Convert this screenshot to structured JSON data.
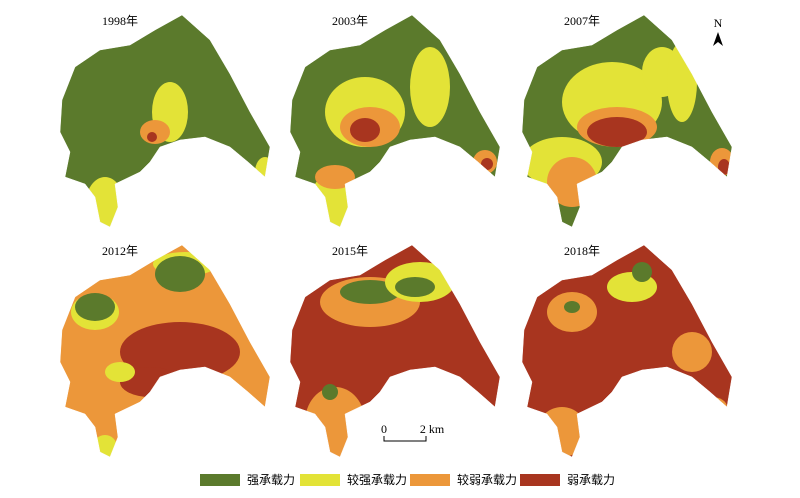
{
  "panels": [
    {
      "year": "1998年"
    },
    {
      "year": "2003年"
    },
    {
      "year": "2007年"
    },
    {
      "year": "2012年"
    },
    {
      "year": "2015年"
    },
    {
      "year": "2018年"
    }
  ],
  "north": "N",
  "scale": {
    "start": "0",
    "end": "2 km"
  },
  "legend": {
    "items": [
      {
        "label": "强承载力",
        "color": "#5b7a2c"
      },
      {
        "label": "较强承载力",
        "color": "#e3e337"
      },
      {
        "label": "较弱承载力",
        "color": "#ec973a"
      },
      {
        "label": "弱承载力",
        "color": "#a8351f"
      }
    ]
  }
}
